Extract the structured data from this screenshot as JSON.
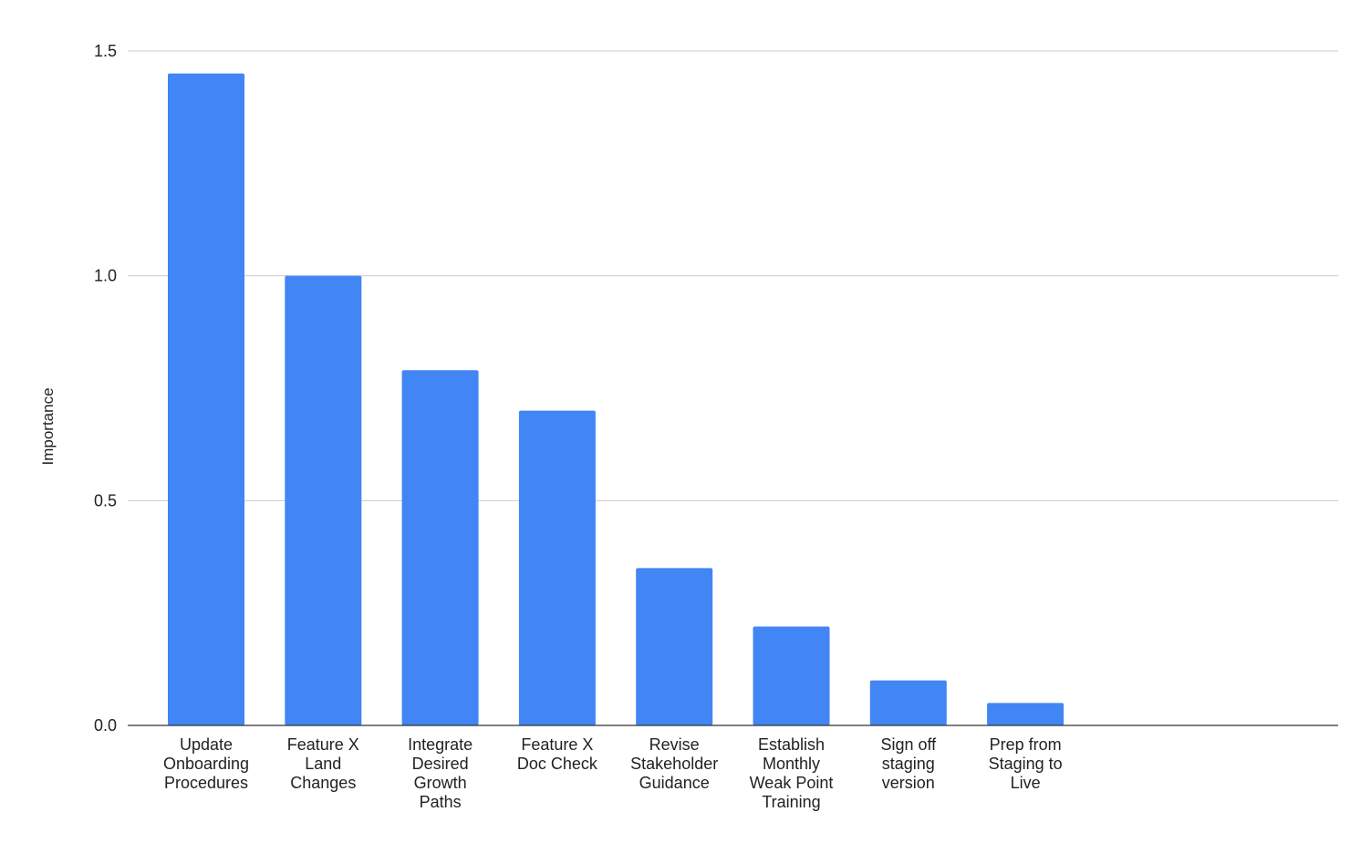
{
  "chart_data": {
    "type": "bar",
    "title": "",
    "xlabel": "",
    "ylabel": "Importance",
    "ylim": [
      0,
      1.5
    ],
    "yticks": [
      "0.0",
      "0.5",
      "1.0",
      "1.5"
    ],
    "grid": true,
    "legend": "none",
    "bar_color": "#4285f4",
    "categories": [
      [
        "Update",
        "Onboarding",
        "Procedures"
      ],
      [
        "Feature X",
        "Land",
        "Changes"
      ],
      [
        "Integrate",
        "Desired",
        "Growth",
        "Paths"
      ],
      [
        "Feature X",
        "Doc Check"
      ],
      [
        "Revise",
        "Stakeholder",
        "Guidance"
      ],
      [
        "Establish",
        "Monthly",
        "Weak Point",
        "Training"
      ],
      [
        "Sign off",
        "staging",
        "version"
      ],
      [
        "Prep from",
        "Staging to",
        "Live"
      ]
    ],
    "values": [
      1.45,
      1.0,
      0.79,
      0.7,
      0.35,
      0.22,
      0.1,
      0.05
    ]
  }
}
